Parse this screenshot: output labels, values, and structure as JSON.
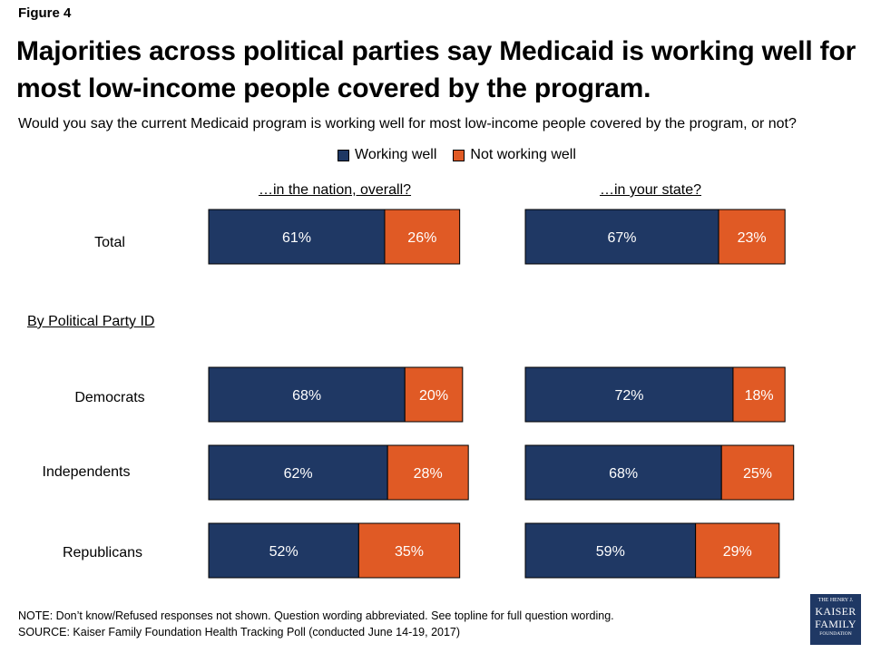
{
  "figure_label": "Figure 4",
  "title": "Majorities across political parties say Medicaid is working well for most low-income people covered by the program.",
  "question": "Would you say the current Medicaid program is working well for most low-income people covered by the program, or not?",
  "section_label": "By Political Party ID",
  "note": "NOTE: Don’t know/Refused responses not shown. Question wording abbreviated. See topline for full question wording.",
  "source": "SOURCE: Kaiser Family Foundation Health Tracking Poll (conducted June 14-19, 2017)",
  "logo": {
    "line1": "THE HENRY J.",
    "line2": "KAISER",
    "line3": "FAMILY",
    "line4": "FOUNDATION"
  },
  "colors": {
    "working_well": "#1f3864",
    "not_working_well": "#e05a25"
  },
  "chart_data": {
    "type": "bar",
    "orientation": "horizontal-stacked",
    "legend": [
      "Working well",
      "Not working well"
    ],
    "legend_position": "top",
    "categories": [
      "Total",
      "Democrats",
      "Independents",
      "Republicans"
    ],
    "panels": [
      {
        "title": "…in the nation, overall?",
        "series": [
          {
            "name": "Working well",
            "values": [
              61,
              68,
              62,
              52
            ]
          },
          {
            "name": "Not working well",
            "values": [
              26,
              20,
              28,
              35
            ]
          }
        ]
      },
      {
        "title": "…in your state?",
        "series": [
          {
            "name": "Working well",
            "values": [
              67,
              72,
              68,
              59
            ]
          },
          {
            "name": "Not working well",
            "values": [
              23,
              18,
              25,
              29
            ]
          }
        ]
      }
    ],
    "value_suffix": "%"
  }
}
